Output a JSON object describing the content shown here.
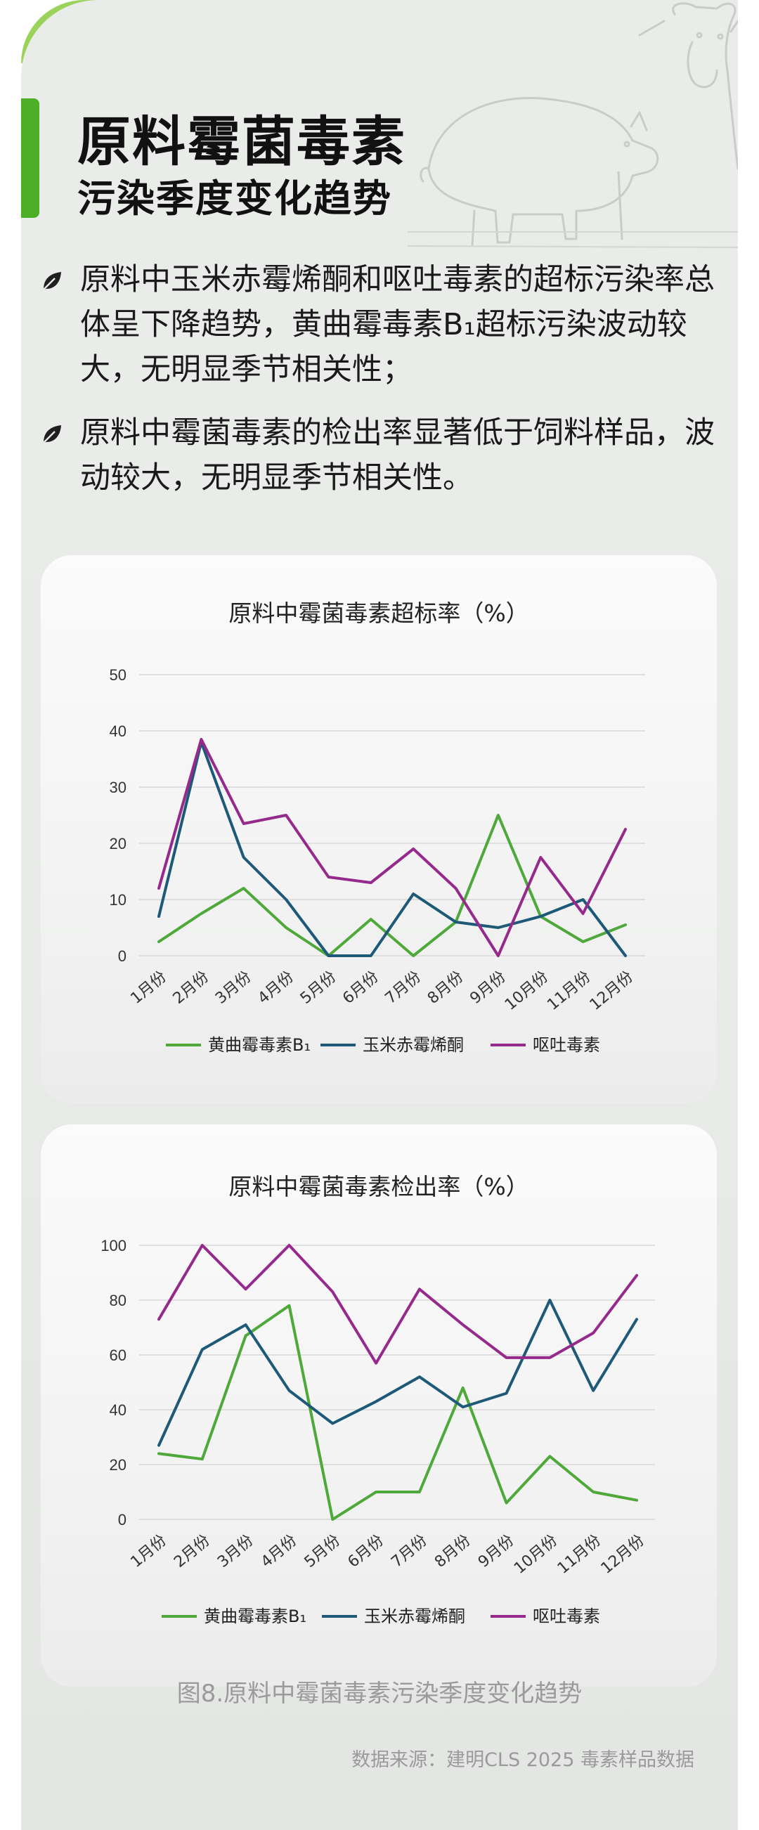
{
  "header": {
    "title_line1": "原料霉菌毒素",
    "title_line2": "污染季度变化趋势"
  },
  "bullets": [
    "原料中玉米赤霉烯酮和呕吐毒素的超标污染率总体呈下降趋势，黄曲霉毒素B₁超标污染波动较大，无明显季节相关性；",
    "原料中霉菌毒素的检出率显著低于饲料样品，波动较大，无明显季节相关性。"
  ],
  "colors": {
    "green_series": "#4fa83a",
    "blue_series": "#1e5a78",
    "purple_series": "#952a8c",
    "accent": "#4caf28"
  },
  "icons": {
    "bullet": "leaf-icon",
    "background": "animal-sketch-icon"
  },
  "chart_data": [
    {
      "type": "line",
      "title": "原料中霉菌毒素超标率（%）",
      "categories": [
        "1月份",
        "2月份",
        "3月份",
        "4月份",
        "5月份",
        "6月份",
        "7月份",
        "8月份",
        "9月份",
        "10月份",
        "11月份",
        "12月份"
      ],
      "yticks": [
        "0",
        "10",
        "20",
        "30",
        "40",
        "50"
      ],
      "ylim": [
        0,
        50
      ],
      "grid": true,
      "legend": "bottom",
      "series": [
        {
          "name": "黄曲霉毒素B₁",
          "color": "#4fa83a",
          "values": [
            2.5,
            7.5,
            12,
            5,
            0,
            6.5,
            0,
            6,
            25,
            7,
            2.5,
            5.5
          ]
        },
        {
          "name": "玉米赤霉烯酮",
          "color": "#1e5a78",
          "values": [
            7,
            38,
            17.5,
            10,
            0,
            0,
            11,
            6,
            5,
            7,
            10,
            0
          ]
        },
        {
          "name": "呕吐毒素",
          "color": "#952a8c",
          "values": [
            12,
            38.5,
            23.5,
            25,
            14,
            13,
            19,
            12,
            0,
            17.5,
            7.5,
            22.5
          ]
        }
      ]
    },
    {
      "type": "line",
      "title": "原料中霉菌毒素检出率（%）",
      "categories": [
        "1月份",
        "2月份",
        "3月份",
        "4月份",
        "5月份",
        "6月份",
        "7月份",
        "8月份",
        "9月份",
        "10月份",
        "11月份",
        "12月份"
      ],
      "yticks": [
        "0",
        "20",
        "40",
        "60",
        "80",
        "100"
      ],
      "ylim": [
        0,
        100
      ],
      "grid": true,
      "legend": "bottom",
      "series": [
        {
          "name": "黄曲霉毒素B₁",
          "color": "#4fa83a",
          "values": [
            24,
            22,
            67,
            78,
            0,
            10,
            10,
            48,
            6,
            23,
            10,
            7
          ]
        },
        {
          "name": "玉米赤霉烯酮",
          "color": "#1e5a78",
          "values": [
            27,
            62,
            71,
            47,
            35,
            43,
            52,
            41,
            46,
            80,
            47,
            73
          ]
        },
        {
          "name": "呕吐毒素",
          "color": "#952a8c",
          "values": [
            73,
            100,
            84,
            100,
            83,
            57,
            84,
            71,
            59,
            59,
            68,
            89
          ]
        }
      ]
    }
  ],
  "caption": "图8.原料中霉菌毒素污染季度变化趋势",
  "source": "数据来源：建明CLS 2025 毒素样品数据"
}
